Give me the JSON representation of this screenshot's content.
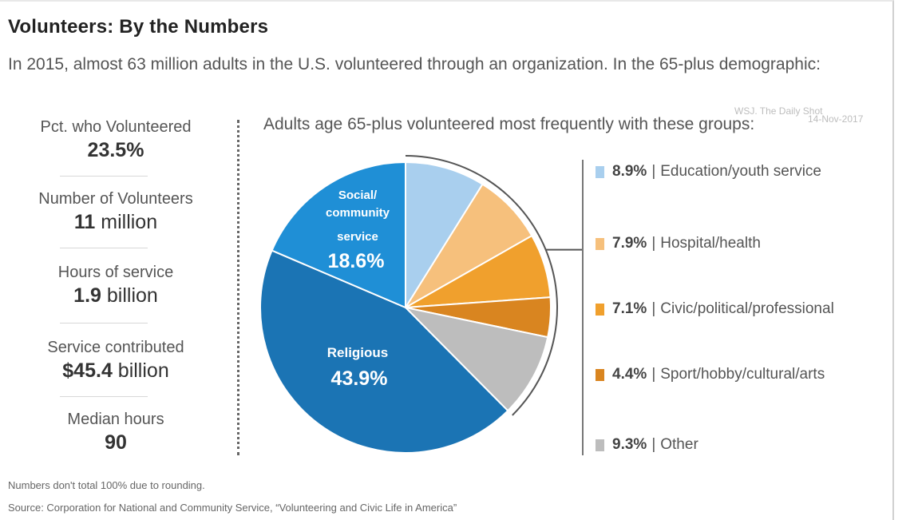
{
  "title": "Volunteers: By the Numbers",
  "subtitle": "In 2015, almost 63 million adults in the U.S. volunteered through an organization. In the 65-plus demographic:",
  "watermark": {
    "line1": "WSJ. The Daily Shot",
    "line2": "14-Nov-2017"
  },
  "stats": [
    {
      "label": "Pct. who Volunteered",
      "value_bold": "23.5%",
      "value_rest": ""
    },
    {
      "label": "Number of Volunteers",
      "value_bold": "11",
      "value_rest": " million"
    },
    {
      "label": "Hours of service",
      "value_bold": "1.9",
      "value_rest": " billion"
    },
    {
      "label": "Service contributed",
      "value_bold": "$45.4",
      "value_rest": " billion"
    },
    {
      "label": "Median hours",
      "value_bold": "90",
      "value_rest": ""
    }
  ],
  "chart_heading": "Adults age 65-plus volunteered most frequently with these groups:",
  "chart_data": {
    "type": "pie",
    "slices": [
      {
        "label": "Education/youth service",
        "value": 8.9,
        "display": "8.9%",
        "color": "#a9cfee"
      },
      {
        "label": "Hospital/health",
        "value": 7.9,
        "display": "7.9%",
        "color": "#f6c07c"
      },
      {
        "label": "Civic/political/professional",
        "value": 7.1,
        "display": "7.1%",
        "color": "#f0a02d"
      },
      {
        "label": "Sport/hobby/cultural/arts",
        "value": 4.4,
        "display": "4.4%",
        "color": "#d98520"
      },
      {
        "label": "Other",
        "value": 9.3,
        "display": "9.3%",
        "color": "#bdbdbd"
      },
      {
        "label": "Religious",
        "value": 43.9,
        "display": "43.9%",
        "color": "#1b74b4",
        "inline_label": "Religious"
      },
      {
        "label": "Social/community service",
        "value": 18.6,
        "display": "18.6%",
        "color": "#1f8fd6",
        "inline_label": "Social/ community service"
      }
    ]
  },
  "footnotes": {
    "rounding": "Numbers don't total 100% due to rounding.",
    "source": "Source: Corporation for National and Community Service, “Volunteering and Civic Life in America”"
  }
}
